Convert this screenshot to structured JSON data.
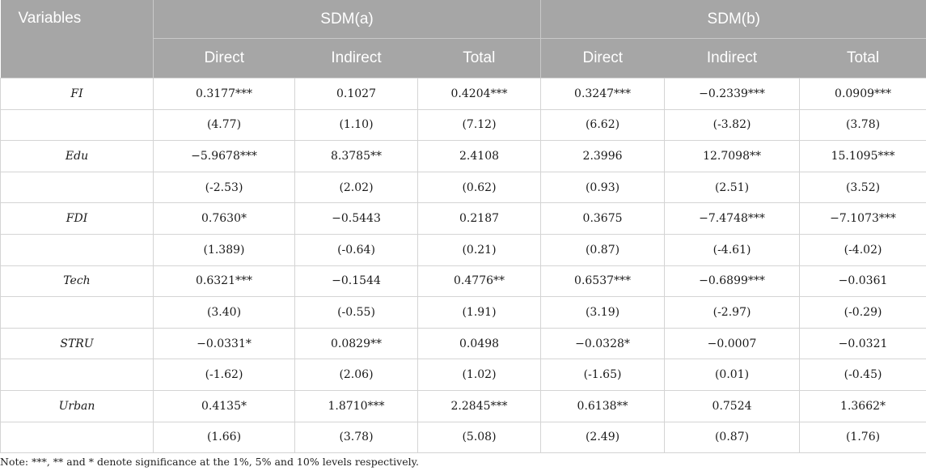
{
  "header": {
    "variables_label": "Variables",
    "groups": [
      "SDM(a)",
      "SDM(b)"
    ],
    "subcolumns": [
      "Direct",
      "Indirect",
      "Total",
      "Direct",
      "Indirect",
      "Total"
    ]
  },
  "rows": [
    {
      "name": "FI",
      "values": [
        "0.3177***",
        "0.1027",
        "0.4204***",
        "0.3247***",
        "−0.2339***",
        "0.0909***"
      ]
    },
    {
      "name": "",
      "values": [
        "(4.77)",
        "(1.10)",
        "(7.12)",
        "(6.62)",
        "(-3.82)",
        "(3.78)"
      ]
    },
    {
      "name": "Edu",
      "values": [
        "−5.9678***",
        "8.3785**",
        "2.4108",
        "2.3996",
        "12.7098**",
        "15.1095***"
      ]
    },
    {
      "name": "",
      "values": [
        "(-2.53)",
        "(2.02)",
        "(0.62)",
        "(0.93)",
        "(2.51)",
        "(3.52)"
      ]
    },
    {
      "name": "FDI",
      "values": [
        "0.7630*",
        "−0.5443",
        "0.2187",
        "0.3675",
        "−7.4748***",
        "−7.1073***"
      ]
    },
    {
      "name": "",
      "values": [
        "(1.389)",
        "(-0.64)",
        "(0.21)",
        "(0.87)",
        "(-4.61)",
        "(-4.02)"
      ]
    },
    {
      "name": "Tech",
      "values": [
        "0.6321***",
        "−0.1544",
        "0.4776**",
        "0.6537***",
        "−0.6899***",
        "−0.0361"
      ]
    },
    {
      "name": "",
      "values": [
        "(3.40)",
        "(-0.55)",
        "(1.91)",
        "(3.19)",
        "(-2.97)",
        "(-0.29)"
      ]
    },
    {
      "name": "STRU",
      "values": [
        "−0.0331*",
        "0.0829**",
        "0.0498",
        "−0.0328*",
        "−0.0007",
        "−0.0321"
      ]
    },
    {
      "name": "",
      "values": [
        "(-1.62)",
        "(2.06)",
        "(1.02)",
        "(-1.65)",
        "(0.01)",
        "(-0.45)"
      ]
    },
    {
      "name": "Urban",
      "values": [
        "0.4135*",
        "1.8710***",
        "2.2845***",
        "0.6138**",
        "0.7524",
        "1.3662*"
      ]
    },
    {
      "name": "",
      "values": [
        "(1.66)",
        "(3.78)",
        "(5.08)",
        "(2.49)",
        "(0.87)",
        "(1.76)"
      ]
    }
  ],
  "note": "Note: ***, ** and * denote significance at the 1%, 5% and 10% levels respectively."
}
